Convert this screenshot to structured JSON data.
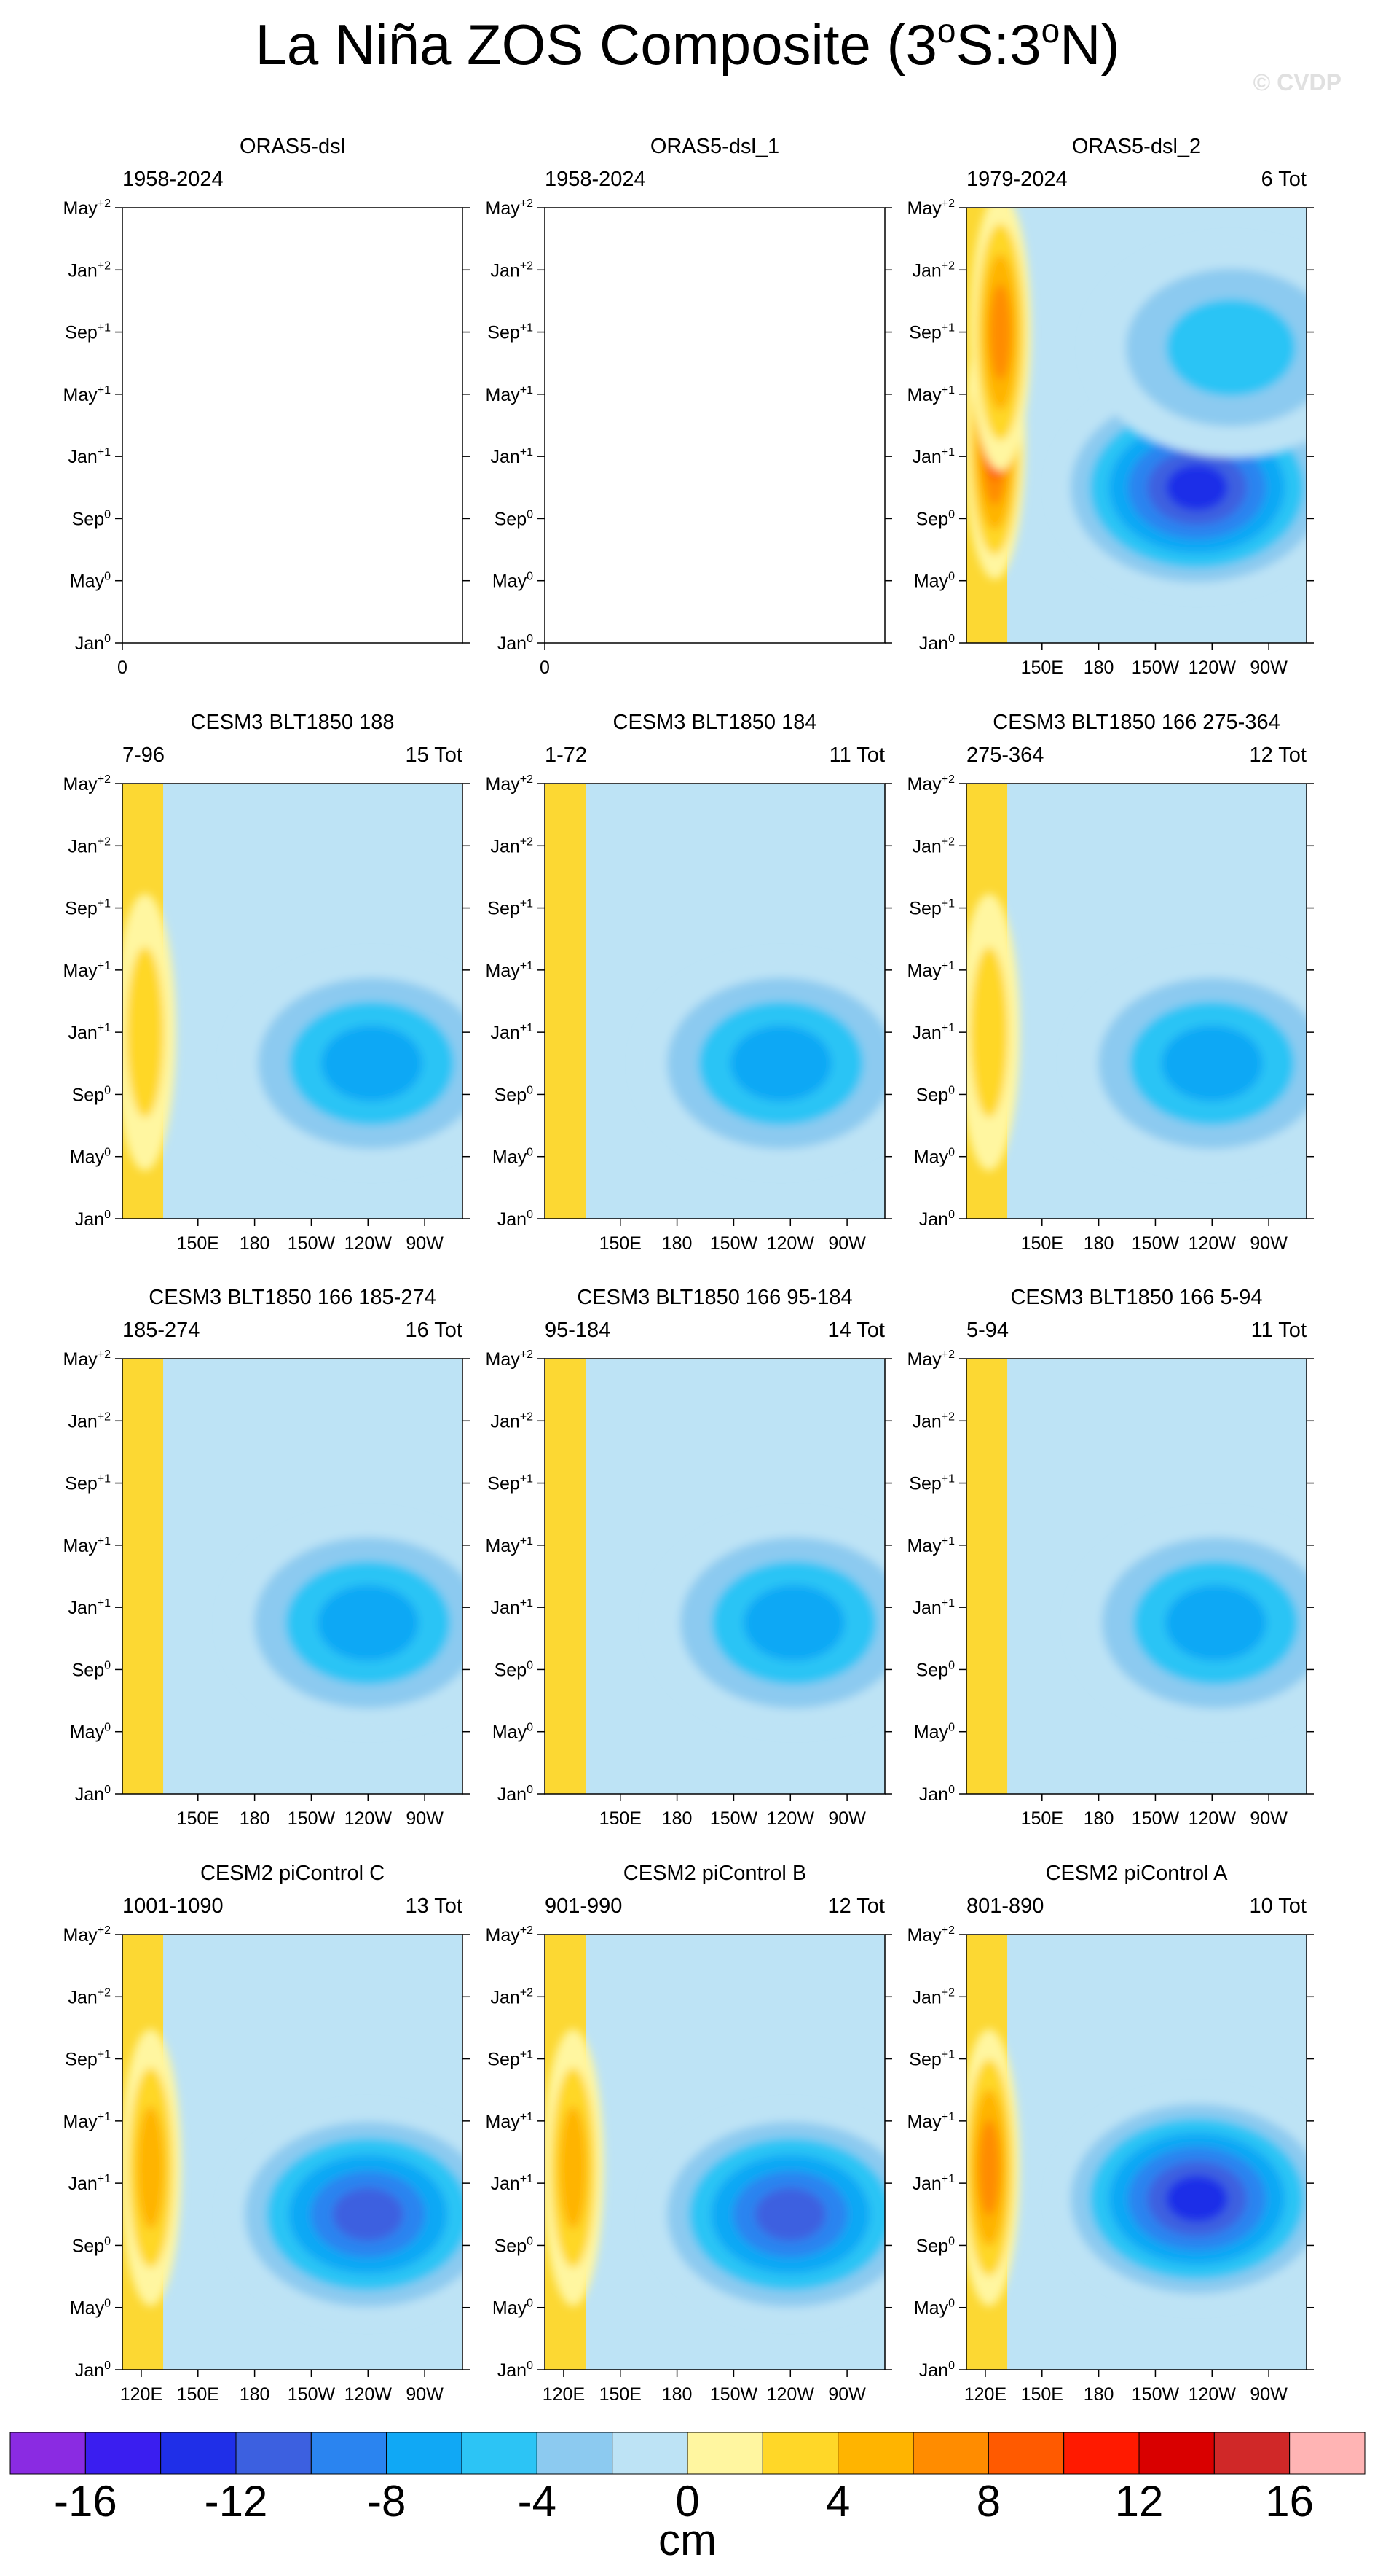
{
  "figure": {
    "title": "La Niña ZOS Composite (3°S:3°N)",
    "title_main": "La Niña ZOS Composite (3",
    "title_sup1": "o",
    "title_mid": "S:3",
    "title_sup2": "o",
    "title_end": "N)",
    "watermark": "© CVDP"
  },
  "colorbar": {
    "unit": "cm",
    "levels": [
      -16,
      -14,
      -12,
      -10,
      -8,
      -6,
      -4,
      -2,
      0,
      2,
      4,
      6,
      8,
      10,
      12,
      14,
      16
    ],
    "tick_labels": [
      "-16",
      "-12",
      "-8",
      "-4",
      "0",
      "4",
      "8",
      "12",
      "16"
    ],
    "colors": [
      "#8a2be2",
      "#3a1ef0",
      "#1f2fe8",
      "#3c60e0",
      "#2a84f0",
      "#10a8f5",
      "#2cc4f5",
      "#8ccaf0",
      "#bde3f5",
      "#fff6a0",
      "#ffd728",
      "#ffb400",
      "#ff8c00",
      "#ff5a00",
      "#ff1a00",
      "#d90000",
      "#d02828",
      "#ffb4b4"
    ]
  },
  "chart_data": [
    {
      "type": "heatmap",
      "title": "ORAS5-dsl",
      "period": "1958-2024",
      "count": "",
      "x_axis_labels": [
        "0"
      ],
      "empty": true,
      "y_ticks": [
        "Jan⁰",
        "May⁰",
        "Sep⁰",
        "Jan⁺¹",
        "May⁺¹",
        "Sep⁺¹",
        "Jan⁺²",
        "May⁺²"
      ]
    },
    {
      "type": "heatmap",
      "title": "ORAS5-dsl_1",
      "period": "1958-2024",
      "count": "",
      "x_axis_labels": [
        "0"
      ],
      "empty": true,
      "y_ticks": [
        "Jan⁰",
        "May⁰",
        "Sep⁰",
        "Jan⁺¹",
        "May⁺¹",
        "Sep⁺¹",
        "Jan⁺²",
        "May⁺²"
      ]
    },
    {
      "type": "heatmap",
      "title": "ORAS5-dsl_2",
      "period": "1979-2024",
      "count": "6 Tot",
      "x_axis_labels": [
        "150E",
        "180",
        "150W",
        "120W",
        "90W"
      ],
      "empty": false,
      "y_ticks": [
        "Jan⁰",
        "May⁰",
        "Sep⁰",
        "Jan⁺¹",
        "May⁺¹",
        "Sep⁺¹",
        "Jan⁺²",
        "May⁺²"
      ],
      "features": [
        {
          "lon": 125,
          "month": 13,
          "value": 9
        },
        {
          "lon": 128,
          "month": 20,
          "value": 7
        },
        {
          "lon": 232,
          "month": 10,
          "value": -14
        },
        {
          "lon": 250,
          "month": 19,
          "value": -6
        }
      ]
    },
    {
      "type": "heatmap",
      "title": "CESM3 BLT1850 188",
      "period": "7-96",
      "count": "15 Tot",
      "x_axis_labels": [
        "150E",
        "180",
        "150W",
        "120W",
        "90W"
      ],
      "empty": false,
      "y_ticks": [
        "Jan⁰",
        "May⁰",
        "Sep⁰",
        "Jan⁺¹",
        "May⁺¹",
        "Sep⁺¹",
        "Jan⁺²",
        "May⁺²"
      ],
      "features": [
        {
          "lon": 242,
          "month": 10,
          "value": -8
        },
        {
          "lon": 122,
          "month": 12,
          "value": 3
        }
      ]
    },
    {
      "type": "heatmap",
      "title": "CESM3 BLT1850 184",
      "period": "1-72",
      "count": "11 Tot",
      "x_axis_labels": [
        "150E",
        "180",
        "150W",
        "120W",
        "90W"
      ],
      "empty": false,
      "y_ticks": [
        "Jan⁰",
        "May⁰",
        "Sep⁰",
        "Jan⁺¹",
        "May⁺¹",
        "Sep⁺¹",
        "Jan⁺²",
        "May⁺²"
      ],
      "features": [
        {
          "lon": 235,
          "month": 10,
          "value": -8
        }
      ]
    },
    {
      "type": "heatmap",
      "title": "CESM3 BLT1850 166 275-364",
      "period": "275-364",
      "count": "12 Tot",
      "x_axis_labels": [
        "150E",
        "180",
        "150W",
        "120W",
        "90W"
      ],
      "empty": false,
      "y_ticks": [
        "Jan⁰",
        "May⁰",
        "Sep⁰",
        "Jan⁺¹",
        "May⁺¹",
        "Sep⁺¹",
        "Jan⁺²",
        "May⁺²"
      ],
      "features": [
        {
          "lon": 240,
          "month": 10,
          "value": -8
        },
        {
          "lon": 122,
          "month": 12,
          "value": 3
        }
      ]
    },
    {
      "type": "heatmap",
      "title": "CESM3 BLT1850 166 185-274",
      "period": "185-274",
      "count": "16 Tot",
      "x_axis_labels": [
        "150E",
        "180",
        "150W",
        "120W",
        "90W"
      ],
      "empty": false,
      "y_ticks": [
        "Jan⁰",
        "May⁰",
        "Sep⁰",
        "Jan⁺¹",
        "May⁺¹",
        "Sep⁺¹",
        "Jan⁺²",
        "May⁺²"
      ],
      "features": [
        {
          "lon": 240,
          "month": 11,
          "value": -8
        }
      ]
    },
    {
      "type": "heatmap",
      "title": "CESM3 BLT1850 166 95-184",
      "period": "95-184",
      "count": "14 Tot",
      "x_axis_labels": [
        "150E",
        "180",
        "150W",
        "120W",
        "90W"
      ],
      "empty": false,
      "y_ticks": [
        "Jan⁰",
        "May⁰",
        "Sep⁰",
        "Jan⁺¹",
        "May⁺¹",
        "Sep⁺¹",
        "Jan⁺²",
        "May⁺²"
      ],
      "features": [
        {
          "lon": 242,
          "month": 11,
          "value": -8
        }
      ]
    },
    {
      "type": "heatmap",
      "title": "CESM3 BLT1850 166 5-94",
      "period": "5-94",
      "count": "11 Tot",
      "x_axis_labels": [
        "150E",
        "180",
        "150W",
        "120W",
        "90W"
      ],
      "empty": false,
      "y_ticks": [
        "Jan⁰",
        "May⁰",
        "Sep⁰",
        "Jan⁺¹",
        "May⁺¹",
        "Sep⁺¹",
        "Jan⁺²",
        "May⁺²"
      ],
      "features": [
        {
          "lon": 242,
          "month": 11,
          "value": -8
        }
      ]
    },
    {
      "type": "heatmap",
      "title": "CESM2 piControl C",
      "period": "1001-1090",
      "count": "13 Tot",
      "x_axis_labels": [
        "120E",
        "150E",
        "180",
        "150W",
        "120W",
        "90W"
      ],
      "empty": false,
      "y_ticks": [
        "Jan⁰",
        "May⁰",
        "Sep⁰",
        "Jan⁺¹",
        "May⁺¹",
        "Sep⁺¹",
        "Jan⁺²",
        "May⁺²"
      ],
      "features": [
        {
          "lon": 240,
          "month": 10,
          "value": -12
        },
        {
          "lon": 125,
          "month": 13,
          "value": 6
        }
      ]
    },
    {
      "type": "heatmap",
      "title": "CESM2 piControl B",
      "period": "901-990",
      "count": "12 Tot",
      "x_axis_labels": [
        "120E",
        "150E",
        "180",
        "150W",
        "120W",
        "90W"
      ],
      "empty": false,
      "y_ticks": [
        "Jan⁰",
        "May⁰",
        "Sep⁰",
        "Jan⁺¹",
        "May⁺¹",
        "Sep⁺¹",
        "Jan⁺²",
        "May⁺²"
      ],
      "features": [
        {
          "lon": 240,
          "month": 10,
          "value": -12
        },
        {
          "lon": 125,
          "month": 13,
          "value": 5
        }
      ]
    },
    {
      "type": "heatmap",
      "title": "CESM2 piControl A",
      "period": "801-890",
      "count": "10 Tot",
      "x_axis_labels": [
        "120E",
        "150E",
        "180",
        "150W",
        "120W",
        "90W"
      ],
      "empty": false,
      "y_ticks": [
        "Jan⁰",
        "May⁰",
        "Sep⁰",
        "Jan⁺¹",
        "May⁺¹",
        "Sep⁺¹",
        "Jan⁺²",
        "May⁺²"
      ],
      "features": [
        {
          "lon": 232,
          "month": 11,
          "value": -14
        },
        {
          "lon": 122,
          "month": 13,
          "value": 8
        }
      ]
    }
  ]
}
